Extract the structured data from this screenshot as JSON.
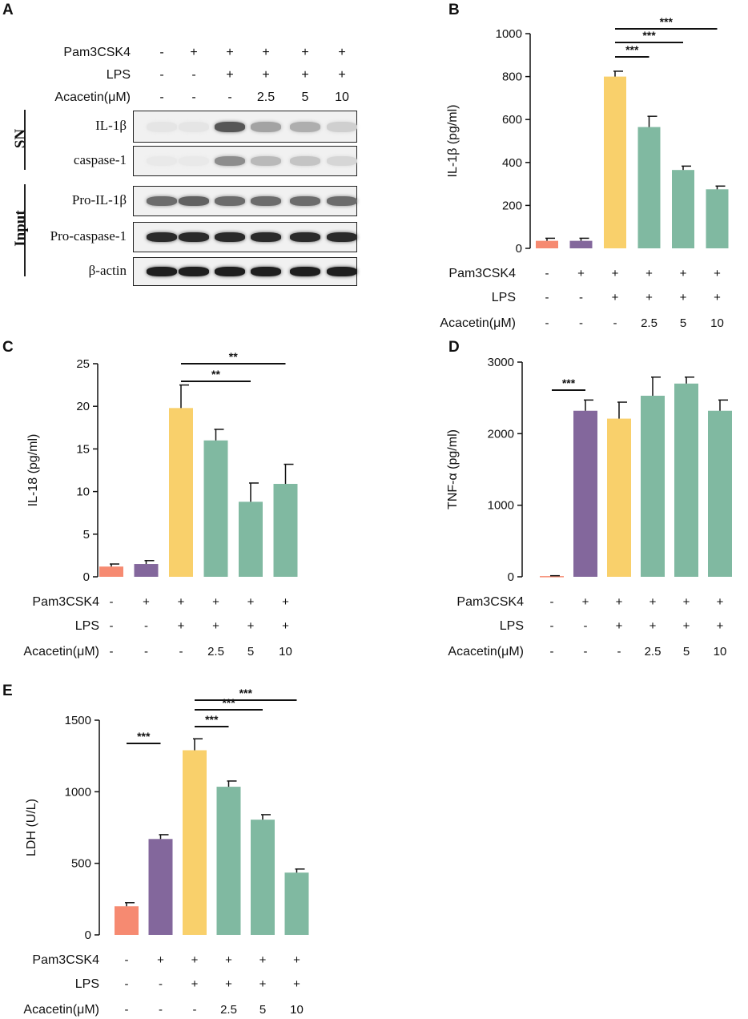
{
  "figure": {
    "treatments": {
      "row_labels": [
        "Pam3CSK4",
        "LPS",
        "Acacetin(μM)"
      ],
      "pam3csk4": [
        "-",
        "+",
        "+",
        "+",
        "+",
        "+"
      ],
      "lps": [
        "-",
        "-",
        "+",
        "+",
        "+",
        "+"
      ],
      "acacetin": [
        "-",
        "-",
        "-",
        "2.5",
        "5",
        "10"
      ]
    },
    "colors": {
      "control": "#f68a71",
      "pam": "#83679c",
      "lps": "#f9d06b",
      "acacetin": "#80b9a1"
    }
  },
  "panel_a": {
    "letter": "A",
    "group_sn": "SN",
    "group_input": "Input",
    "blots": [
      {
        "name": "IL-1β",
        "intensity": [
          0.05,
          0.05,
          0.7,
          0.35,
          0.3,
          0.15
        ]
      },
      {
        "name": "caspase-1",
        "intensity": [
          0.03,
          0.03,
          0.45,
          0.25,
          0.2,
          0.12
        ]
      },
      {
        "name": "Pro-IL-1β",
        "intensity": [
          0.6,
          0.65,
          0.6,
          0.6,
          0.6,
          0.6
        ]
      },
      {
        "name": "Pro-caspase-1",
        "intensity": [
          0.9,
          0.9,
          0.9,
          0.9,
          0.9,
          0.9
        ]
      },
      {
        "name": "β-actin",
        "intensity": [
          0.95,
          0.95,
          0.95,
          0.95,
          0.95,
          0.95
        ]
      }
    ]
  },
  "chart_data": [
    {
      "panel": "B",
      "type": "bar",
      "ylabel": "IL-1β (pg/ml)",
      "ylim": [
        0,
        1000
      ],
      "yticks": [
        "0",
        "200",
        "400",
        "600",
        "800",
        "1000"
      ],
      "categories": [
        "1",
        "2",
        "3",
        "4",
        "5",
        "6"
      ],
      "values": [
        35,
        35,
        800,
        565,
        365,
        275
      ],
      "errors": [
        12,
        12,
        25,
        50,
        18,
        15
      ],
      "significance": [
        {
          "from": 3,
          "to": 4,
          "label": "***"
        },
        {
          "from": 3,
          "to": 5,
          "label": "***"
        },
        {
          "from": 3,
          "to": 6,
          "label": "***"
        }
      ]
    },
    {
      "panel": "C",
      "type": "bar",
      "ylabel": "IL-18 (pg/ml)",
      "ylim": [
        0,
        25
      ],
      "yticks": [
        "0",
        "5",
        "10",
        "15",
        "20",
        "25"
      ],
      "categories": [
        "1",
        "2",
        "3",
        "4",
        "5",
        "6"
      ],
      "values": [
        1.2,
        1.5,
        19.8,
        16.0,
        8.8,
        10.9
      ],
      "errors": [
        0.3,
        0.4,
        2.7,
        1.3,
        2.2,
        2.3
      ],
      "significance": [
        {
          "from": 3,
          "to": 5,
          "label": "**"
        },
        {
          "from": 3,
          "to": 6,
          "label": "**"
        }
      ]
    },
    {
      "panel": "D",
      "type": "bar",
      "ylabel": "TNF-α (pg/ml)",
      "ylim": [
        0,
        3000
      ],
      "yticks": [
        "0",
        "1000",
        "2000",
        "3000"
      ],
      "categories": [
        "1",
        "2",
        "3",
        "4",
        "5",
        "6"
      ],
      "values": [
        10,
        2320,
        2210,
        2530,
        2700,
        2320
      ],
      "errors": [
        5,
        150,
        230,
        260,
        90,
        150
      ],
      "significance": [
        {
          "from": 1,
          "to": 2,
          "label": "***"
        }
      ]
    },
    {
      "panel": "E",
      "type": "bar",
      "ylabel": "LDH (U/L)",
      "ylim": [
        0,
        1500
      ],
      "yticks": [
        "0",
        "500",
        "1000",
        "1500"
      ],
      "categories": [
        "1",
        "2",
        "3",
        "4",
        "5",
        "6"
      ],
      "values": [
        200,
        670,
        1290,
        1035,
        805,
        435
      ],
      "errors": [
        25,
        30,
        80,
        40,
        35,
        25
      ],
      "significance": [
        {
          "from": 1,
          "to": 2,
          "label": "***"
        },
        {
          "from": 3,
          "to": 4,
          "label": "***"
        },
        {
          "from": 3,
          "to": 5,
          "label": "***"
        },
        {
          "from": 3,
          "to": 6,
          "label": "***"
        }
      ]
    }
  ]
}
